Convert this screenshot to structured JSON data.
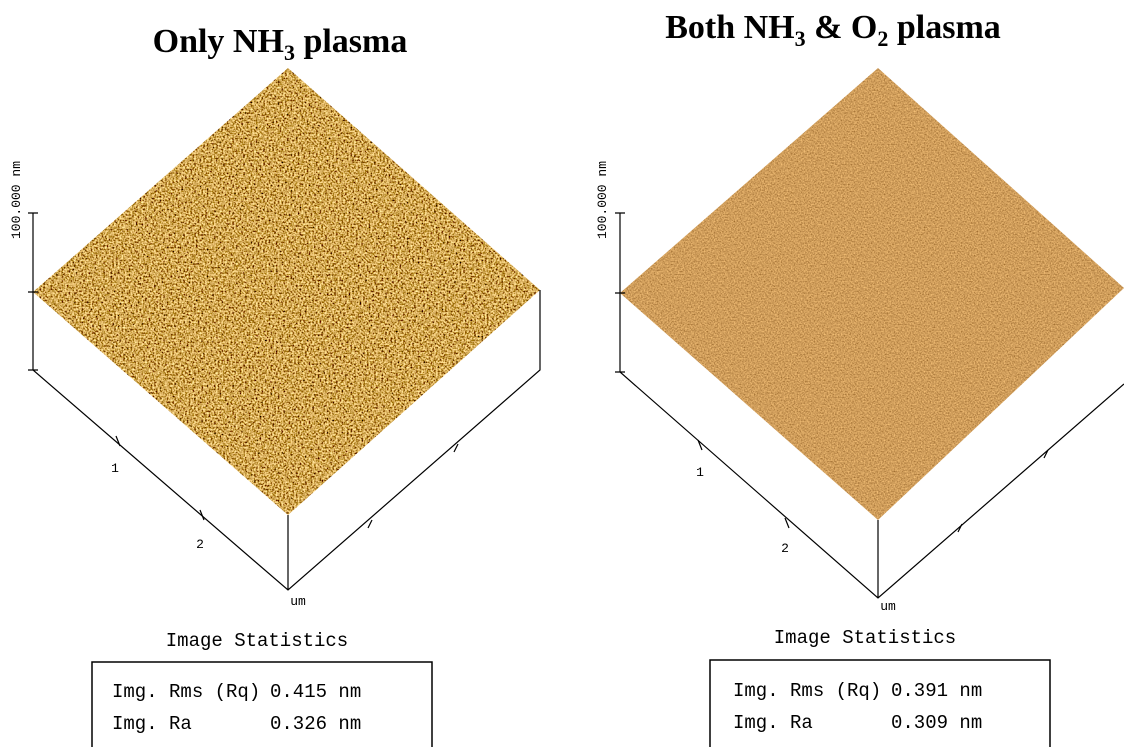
{
  "panels": [
    {
      "title": [
        "Only NH",
        "3",
        " plasma"
      ],
      "z_label": "100.000 nm",
      "x_ticks": [
        "1",
        "2"
      ],
      "unit": "um",
      "stats": {
        "title": "Image Statistics",
        "rows": [
          [
            "Img. Rms (Rq)",
            "0.415 nm"
          ],
          [
            "Img. Ra",
            "0.326 nm"
          ]
        ]
      }
    },
    {
      "title": [
        "Both NH",
        "3",
        " & O",
        "2",
        " plasma"
      ],
      "z_label": "100.000 nm",
      "x_ticks": [
        "1",
        "2"
      ],
      "unit": "um",
      "stats": {
        "title": "Image Statistics",
        "rows": [
          [
            "Img. Rms (Rq)",
            "0.391 nm"
          ],
          [
            "Img. Ra",
            "0.309 nm"
          ]
        ]
      }
    }
  ]
}
